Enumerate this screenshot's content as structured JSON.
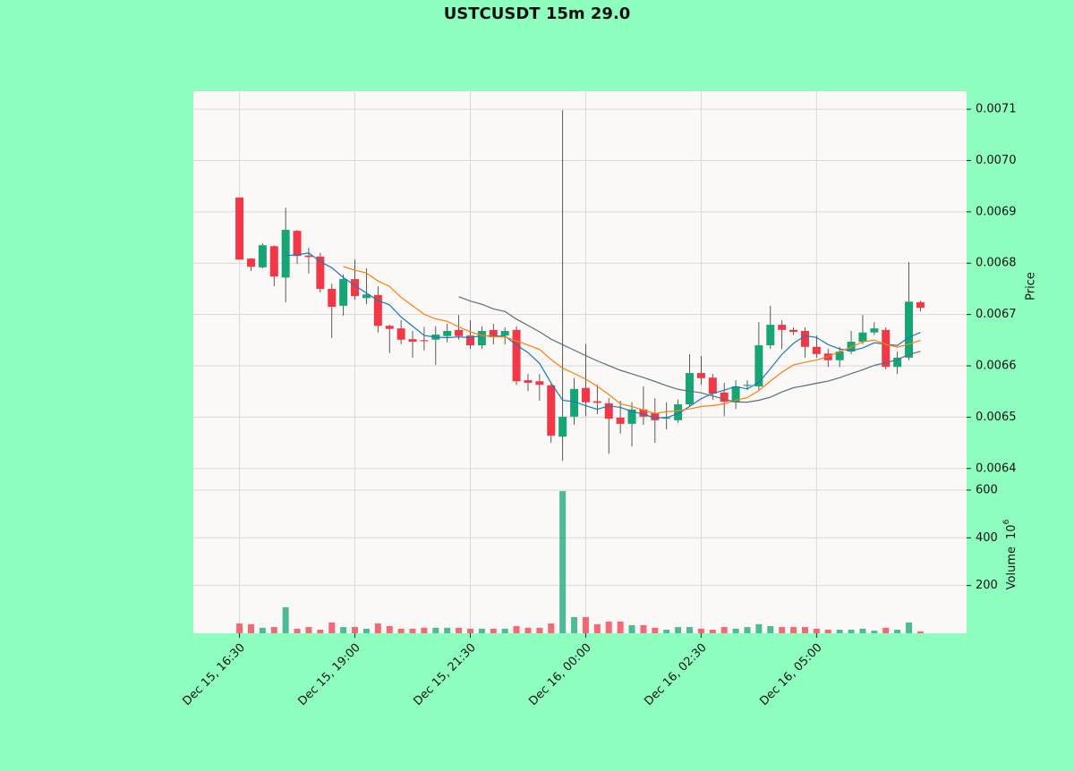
{
  "chart_data": {
    "type": "candlestick",
    "title": "USTCUSDT 15m 29.0",
    "y_label": "Price",
    "volume_label": "Volume",
    "volume_scale": {
      "base": "10",
      "exponent": "6"
    },
    "up_color": "#16a676",
    "down_color": "#f23847",
    "grid": true,
    "xlim": [
      -4,
      63
    ],
    "xticks": [
      {
        "value": 0,
        "label": "Dec 15, 16:30"
      },
      {
        "value": 10,
        "label": "Dec 15, 19:00"
      },
      {
        "value": 20,
        "label": "Dec 15, 21:30"
      },
      {
        "value": 30,
        "label": "Dec 16, 00:00"
      },
      {
        "value": 40,
        "label": "Dec 16, 02:30"
      },
      {
        "value": 50,
        "label": "Dec 16, 05:00"
      }
    ],
    "ylim": [
      0.006377,
      0.007135
    ],
    "yticks": [
      0.0064,
      0.0065,
      0.0066,
      0.0067,
      0.0068,
      0.0069,
      {
        "value": 0.007,
        "label": "0.0070"
      },
      0.0071
    ],
    "volume_ylim": [
      0,
      641
    ],
    "volume_yticks": [
      200,
      400,
      600
    ],
    "moving_averages": [
      {
        "period": 5,
        "color": "#1f77b4"
      },
      {
        "period": 10,
        "color": "#ff7f0e"
      },
      {
        "period": 20,
        "color": "#56707a"
      }
    ],
    "open": [
      0.006928,
      0.006809,
      0.006792,
      0.006833,
      0.006772,
      0.006863,
      0.006815,
      0.006813,
      0.00675,
      0.006717,
      0.006769,
      0.006732,
      0.006738,
      0.006678,
      0.006673,
      0.006652,
      0.00665,
      0.006651,
      0.006658,
      0.00667,
      0.006659,
      0.00664,
      0.00667,
      0.006659,
      0.00667,
      0.006572,
      0.00657,
      0.006562,
      0.006462,
      0.006501,
      0.006557,
      0.006531,
      0.006527,
      0.006499,
      0.006487,
      0.006515,
      0.006508,
      0.006497,
      0.006494,
      0.006525,
      0.006586,
      0.006577,
      0.006548,
      0.006529,
      0.006561,
      0.00656,
      0.00664,
      0.00668,
      0.00667,
      0.006668,
      0.006637,
      0.006624,
      0.006611,
      0.006628,
      0.006647,
      0.006665,
      0.00667,
      0.006598,
      0.006616,
      0.006724
    ],
    "high": [
      0.006928,
      0.00681,
      0.006839,
      0.006835,
      0.006908,
      0.006865,
      0.00683,
      0.00682,
      0.00676,
      0.006778,
      0.006807,
      0.00679,
      0.006755,
      0.00668,
      0.006689,
      0.006668,
      0.006676,
      0.006677,
      0.006682,
      0.006699,
      0.006689,
      0.006677,
      0.006682,
      0.006675,
      0.006677,
      0.006584,
      0.006584,
      0.006565,
      0.007098,
      0.006576,
      0.006642,
      0.006563,
      0.006537,
      0.006532,
      0.006529,
      0.00656,
      0.006537,
      0.006529,
      0.006534,
      0.006623,
      0.006619,
      0.006584,
      0.006567,
      0.006572,
      0.006572,
      0.006685,
      0.006717,
      0.006689,
      0.006675,
      0.006675,
      0.006659,
      0.006633,
      0.006637,
      0.006668,
      0.006699,
      0.006685,
      0.006675,
      0.006628,
      0.006802,
      0.006727
    ],
    "low": [
      0.006807,
      0.006785,
      0.00679,
      0.006755,
      0.006724,
      0.006799,
      0.00678,
      0.006743,
      0.006654,
      0.006698,
      0.006729,
      0.00672,
      0.006665,
      0.006625,
      0.006642,
      0.006616,
      0.00663,
      0.006602,
      0.006646,
      0.006651,
      0.006633,
      0.006633,
      0.006642,
      0.006642,
      0.006563,
      0.006551,
      0.006532,
      0.00645,
      0.006415,
      0.006485,
      0.006502,
      0.006506,
      0.006429,
      0.006468,
      0.006443,
      0.006485,
      0.00645,
      0.006476,
      0.006489,
      0.00652,
      0.006563,
      0.006534,
      0.006502,
      0.006516,
      0.006553,
      0.006553,
      0.006633,
      0.006633,
      0.00666,
      0.006616,
      0.006616,
      0.006598,
      0.006598,
      0.006623,
      0.006642,
      0.00666,
      0.006593,
      0.006584,
      0.006611,
      0.006706
    ],
    "close": [
      0.006807,
      0.006793,
      0.006835,
      0.006774,
      0.006865,
      0.006814,
      0.006812,
      0.00675,
      0.006715,
      0.006769,
      0.006736,
      0.006739,
      0.006678,
      0.006672,
      0.006651,
      0.006647,
      0.006648,
      0.006661,
      0.006668,
      0.006658,
      0.00664,
      0.006668,
      0.006656,
      0.006668,
      0.00657,
      0.006567,
      0.006563,
      0.006464,
      0.006501,
      0.006555,
      0.006529,
      0.006528,
      0.006497,
      0.006487,
      0.006515,
      0.006501,
      0.006494,
      0.006499,
      0.006525,
      0.006586,
      0.006576,
      0.006546,
      0.00653,
      0.00656,
      0.006563,
      0.00664,
      0.00668,
      0.00667,
      0.006666,
      0.006637,
      0.006623,
      0.006611,
      0.006628,
      0.006647,
      0.006665,
      0.006673,
      0.006598,
      0.006616,
      0.006725,
      0.006713
    ],
    "volume": [
      41,
      38,
      23,
      26,
      109,
      19,
      26,
      15,
      45,
      26,
      26,
      19,
      41,
      30,
      19,
      19,
      23,
      23,
      23,
      23,
      19,
      19,
      19,
      19,
      30,
      23,
      23,
      41,
      596,
      68,
      68,
      38,
      49,
      49,
      34,
      34,
      23,
      15,
      26,
      26,
      19,
      15,
      26,
      19,
      26,
      38,
      30,
      26,
      26,
      26,
      19,
      15,
      15,
      15,
      19,
      11,
      23,
      15,
      45,
      8
    ]
  }
}
